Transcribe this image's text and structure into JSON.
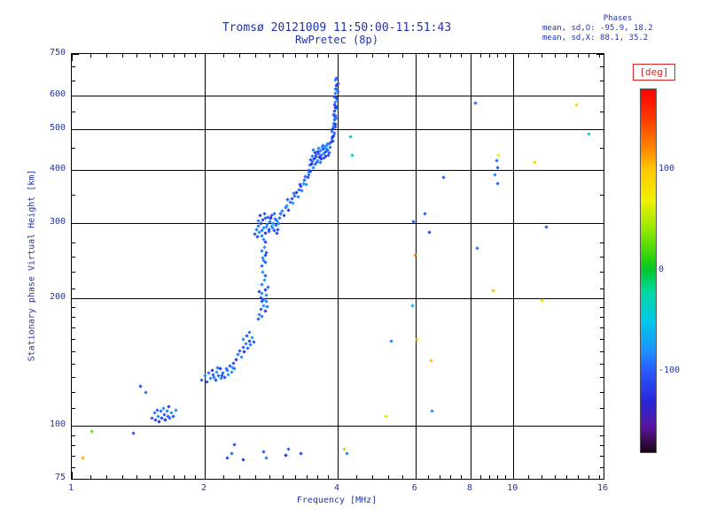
{
  "chart_data": {
    "type": "scatter",
    "title": "Tromsø 20121009 11:50:00-11:51:43",
    "subtitle": "RwPretec (8p)",
    "stats": [
      "Phases",
      "mean, sd,O: -95.9, 18.2",
      "mean, sd,X:  88.1, 35.2"
    ],
    "xlabel": "Frequency [MHz]",
    "ylabel": "Stationary phase Virtual Height [km]",
    "x_scale": "log",
    "x_range": [
      1,
      16
    ],
    "y_scale": "log",
    "y_range": [
      75,
      750
    ],
    "x_major_ticks": [
      1,
      2,
      4,
      6,
      8,
      10,
      16
    ],
    "x_gridlines": [
      2,
      4,
      6,
      8,
      10
    ],
    "x_minor_ticks": [
      1.1,
      1.2,
      1.3,
      1.4,
      1.5,
      1.6,
      1.7,
      1.8,
      1.9,
      2.2,
      2.4,
      2.6,
      2.8,
      3.0,
      3.2,
      3.4,
      3.6,
      3.8,
      4.4,
      4.8,
      5.2,
      5.6,
      6.4,
      6.8,
      7.2,
      7.6,
      8.4,
      8.8,
      9.2,
      9.6,
      10.8,
      11.6,
      12.4,
      13.2,
      14.0,
      14.8,
      15.6
    ],
    "y_major_ticks": [
      75,
      100,
      200,
      300,
      400,
      500,
      600,
      750
    ],
    "y_gridlines": [
      100,
      200,
      300,
      400,
      500,
      600
    ],
    "y_minor_ticks": [
      80,
      85,
      90,
      95,
      110,
      120,
      130,
      140,
      150,
      160,
      170,
      180,
      190,
      210,
      230,
      250,
      270,
      350,
      450,
      550,
      650,
      700
    ],
    "grid": true,
    "legend_position": "right-colorbar",
    "colorbar": {
      "label": "[deg]",
      "range": [
        -180,
        180
      ],
      "ticks": [
        100,
        0,
        -100
      ],
      "stops": [
        [
          180,
          "#ff0000"
        ],
        [
          150,
          "#ff3c00"
        ],
        [
          120,
          "#ff8c00"
        ],
        [
          100,
          "#ffc800"
        ],
        [
          70,
          "#f0f000"
        ],
        [
          40,
          "#90e800"
        ],
        [
          10,
          "#20d010"
        ],
        [
          0,
          "#00c832"
        ],
        [
          -20,
          "#00d8a0"
        ],
        [
          -50,
          "#00c8e8"
        ],
        [
          -80,
          "#2090ff"
        ],
        [
          -100,
          "#2858ff"
        ],
        [
          -130,
          "#2828d8"
        ],
        [
          -155,
          "#5a14a0"
        ],
        [
          -175,
          "#28082e"
        ],
        [
          -180,
          "#140014"
        ]
      ]
    },
    "phase_offsets": [
      -4,
      9,
      -15,
      3,
      13,
      -24,
      6,
      -10,
      19,
      -1,
      -30,
      11,
      0,
      -17,
      8,
      22,
      -7,
      14,
      -12,
      5
    ],
    "segments": [
      {
        "name": "E-region-low",
        "phase_mean": -98,
        "points": [
          [
            1.52,
            104
          ],
          [
            1.54,
            107
          ],
          [
            1.55,
            103
          ],
          [
            1.56,
            109
          ],
          [
            1.57,
            105
          ],
          [
            1.58,
            102
          ],
          [
            1.59,
            108
          ],
          [
            1.6,
            104
          ],
          [
            1.61,
            110
          ],
          [
            1.62,
            106
          ],
          [
            1.63,
            103
          ],
          [
            1.64,
            108
          ],
          [
            1.65,
            105
          ],
          [
            1.66,
            111
          ],
          [
            1.67,
            104
          ],
          [
            1.68,
            107
          ],
          [
            1.7,
            105
          ],
          [
            1.72,
            109
          ],
          [
            1.43,
            124
          ],
          [
            1.47,
            120
          ],
          [
            1.38,
            96
          ]
        ]
      },
      {
        "name": "E-region",
        "phase_mean": -95,
        "points": [
          [
            1.97,
            128
          ],
          [
            2.0,
            131
          ],
          [
            2.02,
            127
          ],
          [
            2.04,
            133
          ],
          [
            2.06,
            129
          ],
          [
            2.08,
            135
          ],
          [
            2.1,
            130
          ],
          [
            2.12,
            128
          ],
          [
            2.13,
            134
          ],
          [
            2.15,
            131
          ],
          [
            2.17,
            136
          ],
          [
            2.18,
            129
          ],
          [
            2.2,
            133
          ],
          [
            2.22,
            130
          ],
          [
            2.24,
            136
          ],
          [
            2.26,
            132
          ],
          [
            2.28,
            138
          ],
          [
            2.3,
            134
          ],
          [
            2.32,
            140
          ],
          [
            2.34,
            136
          ],
          [
            2.09,
            132
          ],
          [
            2.14,
            137
          ],
          [
            2.19,
            131
          ],
          [
            2.25,
            135
          ],
          [
            2.31,
            137
          ],
          [
            2.36,
            143
          ],
          [
            2.38,
            147
          ],
          [
            2.4,
            150
          ],
          [
            2.42,
            145
          ],
          [
            2.44,
            153
          ],
          [
            2.46,
            149
          ],
          [
            2.48,
            156
          ],
          [
            2.5,
            152
          ],
          [
            2.52,
            158
          ],
          [
            2.54,
            155
          ],
          [
            2.56,
            161
          ],
          [
            2.58,
            157
          ],
          [
            2.45,
            160
          ],
          [
            2.49,
            163
          ],
          [
            2.53,
            166
          ]
        ]
      },
      {
        "name": "F-lower-vertical",
        "phase_mean": -92,
        "points": [
          [
            2.64,
            178
          ],
          [
            2.66,
            183
          ],
          [
            2.68,
            188
          ],
          [
            2.7,
            181
          ],
          [
            2.72,
            192
          ],
          [
            2.74,
            186
          ],
          [
            2.76,
            196
          ],
          [
            2.68,
            200
          ],
          [
            2.7,
            205
          ],
          [
            2.72,
            198
          ],
          [
            2.74,
            209
          ],
          [
            2.76,
            203
          ],
          [
            2.78,
            212
          ],
          [
            2.66,
            207
          ],
          [
            2.7,
            215
          ],
          [
            2.73,
            220
          ],
          [
            2.75,
            226
          ],
          [
            2.71,
            230
          ],
          [
            2.69,
            196
          ],
          [
            2.77,
            191
          ],
          [
            2.7,
            238
          ],
          [
            2.72,
            245
          ],
          [
            2.74,
            252
          ],
          [
            2.7,
            258
          ],
          [
            2.73,
            263
          ],
          [
            2.75,
            270
          ],
          [
            2.71,
            248
          ],
          [
            2.76,
            256
          ],
          [
            2.72,
            274
          ],
          [
            2.74,
            242
          ]
        ]
      },
      {
        "name": "F1-blob",
        "phase_mean": -96,
        "points": [
          [
            2.6,
            282
          ],
          [
            2.62,
            290
          ],
          [
            2.63,
            278
          ],
          [
            2.65,
            295
          ],
          [
            2.66,
            285
          ],
          [
            2.68,
            300
          ],
          [
            2.69,
            288
          ],
          [
            2.71,
            305
          ],
          [
            2.72,
            292
          ],
          [
            2.74,
            308
          ],
          [
            2.75,
            284
          ],
          [
            2.77,
            298
          ],
          [
            2.78,
            310
          ],
          [
            2.8,
            290
          ],
          [
            2.81,
            302
          ],
          [
            2.83,
            295
          ],
          [
            2.84,
            312
          ],
          [
            2.86,
            300
          ],
          [
            2.87,
            288
          ],
          [
            2.89,
            306
          ],
          [
            2.9,
            296
          ],
          [
            2.92,
            303
          ],
          [
            2.93,
            290
          ],
          [
            2.95,
            308
          ],
          [
            2.64,
            303
          ],
          [
            2.67,
            312
          ],
          [
            2.7,
            280
          ],
          [
            2.73,
            316
          ],
          [
            2.76,
            294
          ],
          [
            2.79,
            286
          ],
          [
            2.82,
            308
          ],
          [
            2.85,
            292
          ],
          [
            2.88,
            315
          ],
          [
            2.91,
            284
          ],
          [
            2.94,
            299
          ]
        ]
      },
      {
        "name": "F-rise",
        "phase_mean": -94,
        "points": [
          [
            2.97,
            315
          ],
          [
            3.0,
            320
          ],
          [
            3.02,
            312
          ],
          [
            3.05,
            326
          ],
          [
            3.07,
            330
          ],
          [
            3.1,
            322
          ],
          [
            3.12,
            336
          ],
          [
            3.15,
            342
          ],
          [
            3.17,
            334
          ],
          [
            3.2,
            348
          ],
          [
            3.22,
            354
          ],
          [
            3.25,
            346
          ],
          [
            3.27,
            360
          ],
          [
            3.3,
            366
          ],
          [
            3.32,
            358
          ],
          [
            3.35,
            372
          ],
          [
            3.37,
            378
          ],
          [
            3.4,
            370
          ],
          [
            3.42,
            384
          ],
          [
            3.45,
            390
          ],
          [
            3.08,
            340
          ],
          [
            3.18,
            352
          ],
          [
            3.28,
            370
          ],
          [
            3.38,
            386
          ],
          [
            3.44,
            395
          ]
        ]
      },
      {
        "name": "F2-blob",
        "phase_mean": -97,
        "points": [
          [
            3.44,
            400
          ],
          [
            3.46,
            410
          ],
          [
            3.48,
            398
          ],
          [
            3.5,
            418
          ],
          [
            3.52,
            405
          ],
          [
            3.54,
            425
          ],
          [
            3.56,
            412
          ],
          [
            3.58,
            432
          ],
          [
            3.6,
            420
          ],
          [
            3.62,
            438
          ],
          [
            3.64,
            428
          ],
          [
            3.66,
            444
          ],
          [
            3.68,
            433
          ],
          [
            3.7,
            448
          ],
          [
            3.72,
            438
          ],
          [
            3.74,
            452
          ],
          [
            3.76,
            442
          ],
          [
            3.78,
            456
          ],
          [
            3.8,
            446
          ],
          [
            3.82,
            460
          ],
          [
            3.47,
            422
          ],
          [
            3.51,
            430
          ],
          [
            3.55,
            440
          ],
          [
            3.59,
            416
          ],
          [
            3.63,
            450
          ],
          [
            3.67,
            424
          ],
          [
            3.71,
            456
          ],
          [
            3.75,
            430
          ],
          [
            3.79,
            462
          ],
          [
            3.83,
            440
          ],
          [
            3.49,
            412
          ],
          [
            3.53,
            446
          ],
          [
            3.57,
            428
          ],
          [
            3.61,
            442
          ],
          [
            3.65,
            416
          ],
          [
            3.69,
            452
          ],
          [
            3.73,
            426
          ],
          [
            3.77,
            448
          ],
          [
            3.81,
            434
          ],
          [
            3.84,
            452
          ]
        ]
      },
      {
        "name": "F2-asymptote",
        "phase_mean": -99,
        "points": [
          [
            3.86,
            465
          ],
          [
            3.88,
            475
          ],
          [
            3.9,
            468
          ],
          [
            3.92,
            482
          ],
          [
            3.88,
            492
          ],
          [
            3.9,
            500
          ],
          [
            3.93,
            488
          ],
          [
            3.95,
            505
          ],
          [
            3.91,
            515
          ],
          [
            3.93,
            524
          ],
          [
            3.95,
            512
          ],
          [
            3.97,
            530
          ],
          [
            3.92,
            540
          ],
          [
            3.94,
            550
          ],
          [
            3.96,
            538
          ],
          [
            3.98,
            558
          ],
          [
            3.93,
            568
          ],
          [
            3.95,
            578
          ],
          [
            3.97,
            565
          ],
          [
            3.99,
            585
          ],
          [
            3.94,
            595
          ],
          [
            3.96,
            605
          ],
          [
            3.98,
            592
          ],
          [
            4.0,
            612
          ],
          [
            3.95,
            622
          ],
          [
            3.97,
            632
          ],
          [
            3.99,
            618
          ],
          [
            4.01,
            640
          ],
          [
            3.96,
            650
          ],
          [
            3.98,
            658
          ],
          [
            3.9,
            478
          ],
          [
            3.92,
            508
          ],
          [
            3.94,
            535
          ],
          [
            3.96,
            562
          ],
          [
            3.98,
            620
          ]
        ]
      },
      {
        "name": "bottom-noise",
        "phase_mean": -102,
        "points": [
          [
            2.25,
            84
          ],
          [
            2.3,
            86
          ],
          [
            2.45,
            83
          ],
          [
            2.72,
            87
          ],
          [
            2.76,
            84
          ],
          [
            3.05,
            85
          ],
          [
            3.1,
            88
          ],
          [
            3.3,
            86
          ],
          [
            4.2,
            86
          ],
          [
            2.33,
            90
          ]
        ]
      }
    ],
    "isolated_points": [
      [
        1.06,
        84,
        110
      ],
      [
        1.11,
        97,
        30
      ],
      [
        4.28,
        478,
        -45
      ],
      [
        4.32,
        432,
        -35
      ],
      [
        4.15,
        88,
        45
      ],
      [
        5.3,
        158,
        -85
      ],
      [
        5.15,
        105,
        60
      ],
      [
        5.95,
        302,
        -100
      ],
      [
        6.0,
        252,
        120
      ],
      [
        5.9,
        192,
        -60
      ],
      [
        6.05,
        160,
        95
      ],
      [
        6.3,
        315,
        -100
      ],
      [
        6.45,
        285,
        -110
      ],
      [
        6.5,
        142,
        105
      ],
      [
        6.55,
        108,
        -80
      ],
      [
        6.95,
        385,
        -95
      ],
      [
        8.2,
        576,
        -95
      ],
      [
        8.3,
        262,
        -90
      ],
      [
        9.15,
        420,
        -90
      ],
      [
        9.2,
        405,
        -100
      ],
      [
        9.25,
        432,
        70
      ],
      [
        9.1,
        390,
        -85
      ],
      [
        9.2,
        372,
        -95
      ],
      [
        9.0,
        208,
        105
      ],
      [
        11.2,
        416,
        100
      ],
      [
        11.9,
        293,
        -100
      ],
      [
        11.6,
        197,
        95
      ],
      [
        13.9,
        570,
        85
      ],
      [
        14.8,
        485,
        -40
      ]
    ]
  }
}
